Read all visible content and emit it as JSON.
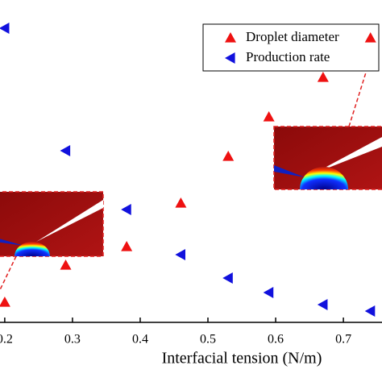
{
  "chart_data": {
    "type": "scatter",
    "x_label": "Interfacial tension (N/m)",
    "xlim": [
      0.193,
      0.757
    ],
    "xticks": [
      0.2,
      0.3,
      0.4,
      0.5,
      0.6,
      0.7
    ],
    "ylim": [
      0,
      100
    ],
    "series": [
      {
        "name": "Droplet diameter",
        "color": "#ee1111",
        "marker": "triangle-up",
        "x": [
          0.2,
          0.29,
          0.38,
          0.46,
          0.53,
          0.59,
          0.67,
          0.74
        ],
        "values": [
          6.25,
          17.75,
          23.5,
          37,
          51.5,
          63.75,
          76,
          88.25
        ]
      },
      {
        "name": "Production rate",
        "color": "#1111dd",
        "marker": "triangle-left",
        "x": [
          0.2,
          0.29,
          0.38,
          0.46,
          0.53,
          0.59,
          0.67,
          0.74
        ],
        "values": [
          91.25,
          53.25,
          35,
          21,
          13.75,
          9.25,
          5.5,
          3.5
        ]
      }
    ]
  }
}
